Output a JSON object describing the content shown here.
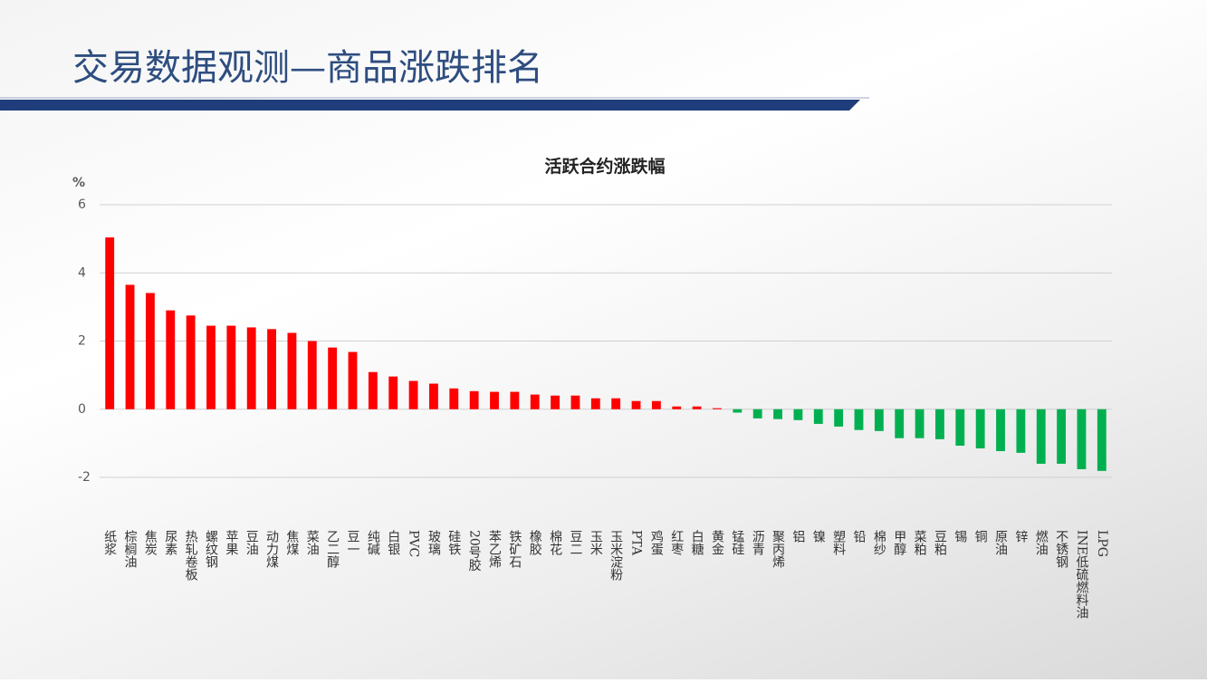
{
  "header": {
    "title": "交易数据观测—商品涨跌排名"
  },
  "chart_data": {
    "type": "bar",
    "title": "活跃合约涨跌幅",
    "y_unit": "%",
    "categories": [
      "纸浆",
      "棕榈油",
      "焦炭",
      "尿素",
      "热轧卷板",
      "螺纹钢",
      "苹果",
      "豆油",
      "动力煤",
      "焦煤",
      "菜油",
      "乙二醇",
      "豆一",
      "纯碱",
      "白银",
      "PVC",
      "玻璃",
      "硅铁",
      "20号胶",
      "苯乙烯",
      "铁矿石",
      "橡胶",
      "棉花",
      "豆二",
      "玉米",
      "玉米淀粉",
      "PTA",
      "鸡蛋",
      "红枣",
      "白糖",
      "黄金",
      "锰硅",
      "沥青",
      "聚丙烯",
      "铝",
      "镍",
      "塑料",
      "铅",
      "棉纱",
      "甲醇",
      "菜粕",
      "豆粕",
      "锡",
      "铜",
      "原油",
      "锌",
      "燃油",
      "不锈钢",
      "INE低硫燃料油",
      "LPG"
    ],
    "values": [
      5.04,
      3.65,
      3.41,
      2.9,
      2.75,
      2.45,
      2.45,
      2.4,
      2.35,
      2.24,
      2.0,
      1.81,
      1.68,
      1.09,
      0.96,
      0.83,
      0.75,
      0.61,
      0.53,
      0.51,
      0.51,
      0.43,
      0.4,
      0.4,
      0.32,
      0.32,
      0.24,
      0.24,
      0.08,
      0.08,
      0.03,
      -0.1,
      -0.27,
      -0.29,
      -0.32,
      -0.43,
      -0.51,
      -0.61,
      -0.64,
      -0.85,
      -0.85,
      -0.88,
      -1.07,
      -1.15,
      -1.23,
      -1.28,
      -1.6,
      -1.6,
      -1.76,
      -1.81
    ],
    "positive_color": "#ff0000",
    "negative_color": "#00b050",
    "ylim": [
      -2,
      6
    ],
    "yticks": [
      -2,
      0,
      2,
      4,
      6
    ],
    "grid": true
  }
}
